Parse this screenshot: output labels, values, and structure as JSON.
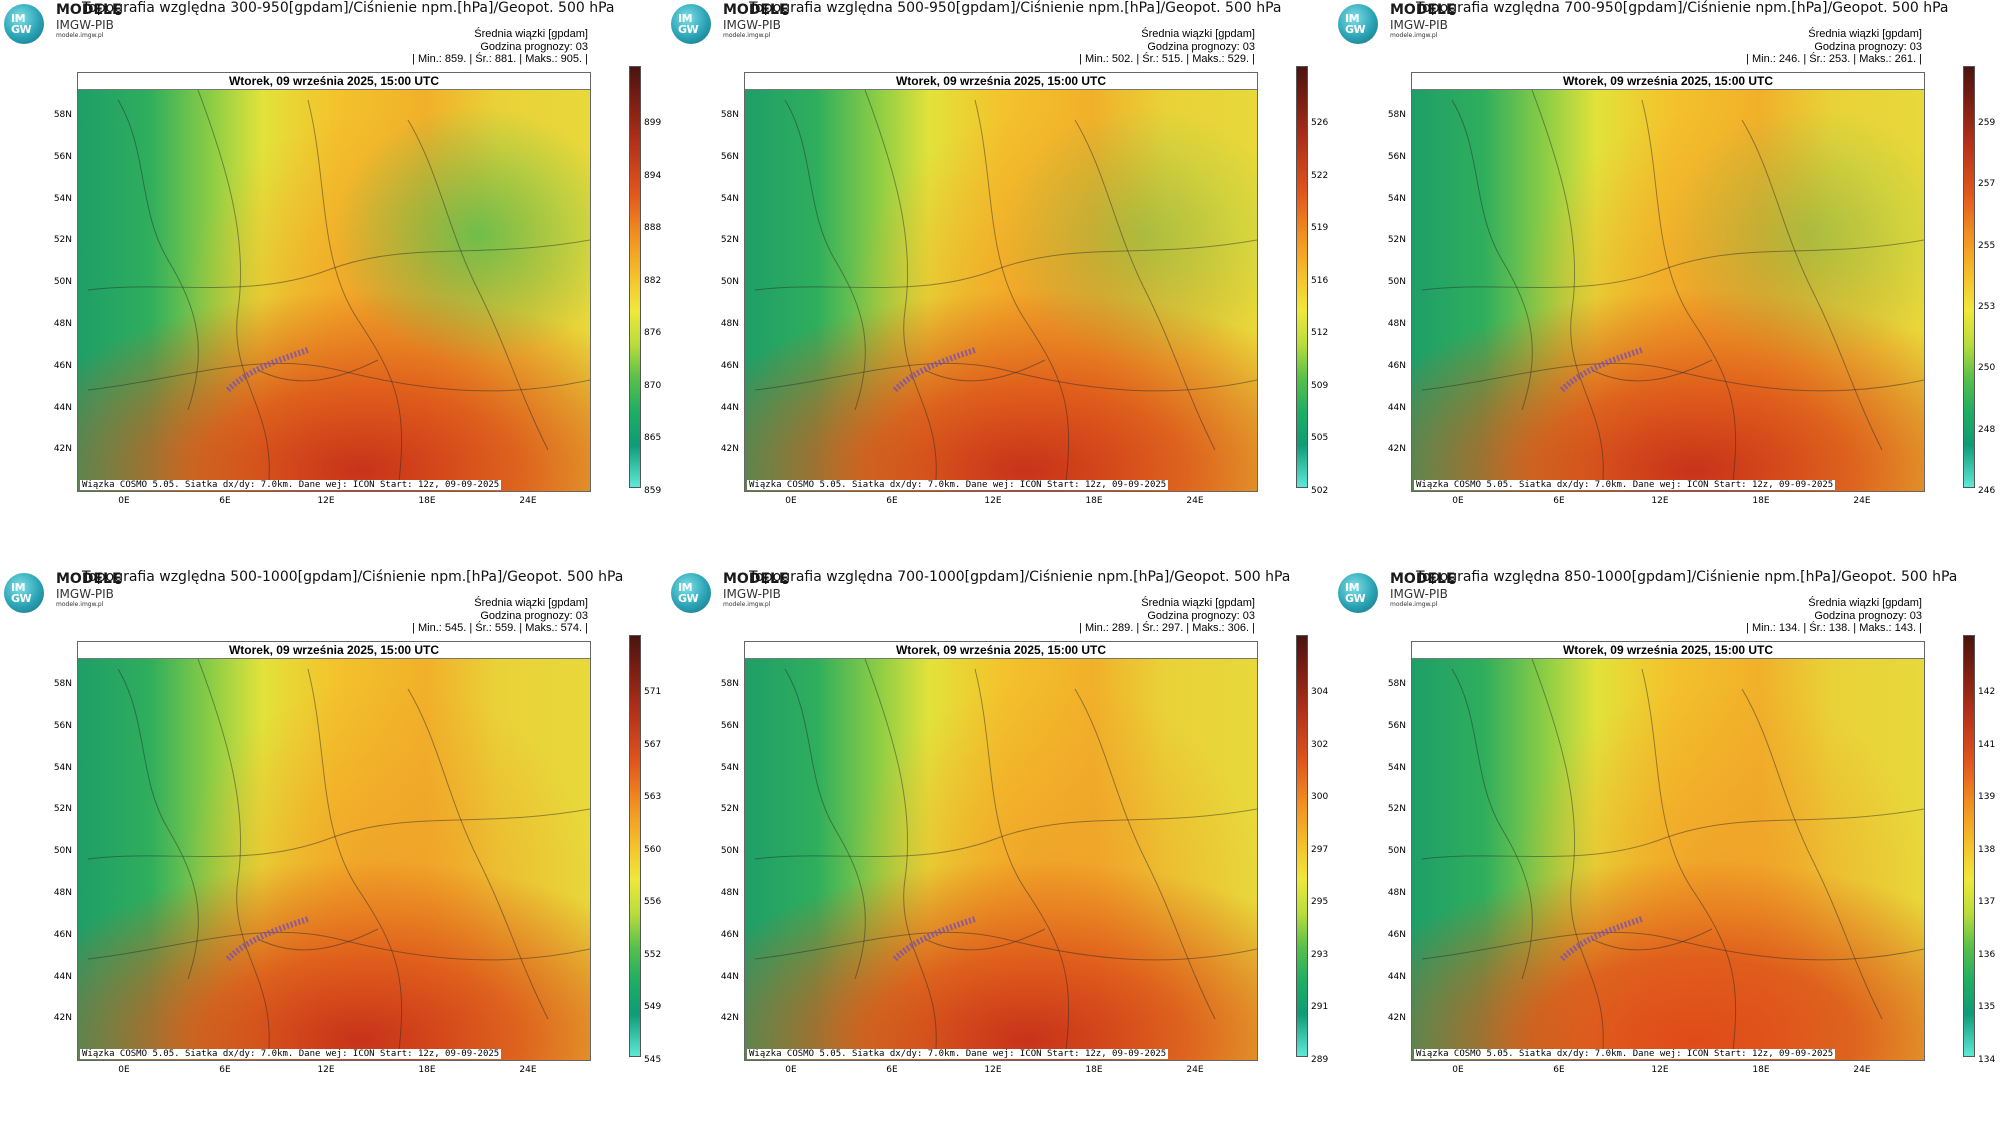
{
  "common": {
    "brand": "MODELE",
    "org": "IMGW-PIB",
    "site": "modele.imgw.pl",
    "logo_text": "IM GW",
    "stats_label": "Średnia wiązki [gpdam]",
    "forecast_hour": "Godzina prognozy: 03",
    "date": "Wtorek, 09 września 2025, 15:00 UTC",
    "footer": "Wiązka COSMO 5.05. Siatka dx/dy: 7.0km. Dane wej: ICON Start: 12z, 09-09-2025",
    "lat_labels": [
      "58N",
      "56N",
      "54N",
      "52N",
      "50N",
      "48N",
      "46N",
      "44N",
      "42N"
    ],
    "lon_labels": [
      "0E",
      "6E",
      "12E",
      "18E",
      "24E"
    ]
  },
  "panels": [
    {
      "title": "Topografia względna 300-950[gpdam]/Ciśnienie npm.[hPa]/Geopot. 500 hPa",
      "stats": "| Min.: 859. | Śr.: 881. | Maks.: 905. |",
      "scale": [
        "899",
        "894",
        "888",
        "882",
        "876",
        "870",
        "865",
        "859"
      ]
    },
    {
      "title": "Topografia względna 500-950[gpdam]/Ciśnienie npm.[hPa]/Geopot. 500 hPa",
      "stats": "| Min.: 502. | Śr.: 515. | Maks.: 529. |",
      "scale": [
        "526",
        "522",
        "519",
        "516",
        "512",
        "509",
        "505",
        "502"
      ]
    },
    {
      "title": "Topografia względna 700-950[gpdam]/Ciśnienie npm.[hPa]/Geopot. 500 hPa",
      "stats": "| Min.: 246. | Śr.: 253. | Maks.: 261. |",
      "scale": [
        "259",
        "257",
        "255",
        "253",
        "250",
        "248",
        "246"
      ]
    },
    {
      "title": "Topografia względna 500-1000[gpdam]/Ciśnienie npm.[hPa]/Geopot. 500 hPa",
      "stats": "| Min.: 545. | Śr.: 559. | Maks.: 574. |",
      "scale": [
        "571",
        "567",
        "563",
        "560",
        "556",
        "552",
        "549",
        "545"
      ]
    },
    {
      "title": "Topografia względna 700-1000[gpdam]/Ciśnienie npm.[hPa]/Geopot. 500 hPa",
      "stats": "| Min.: 289. | Śr.: 297. | Maks.: 306. |",
      "scale": [
        "304",
        "302",
        "300",
        "297",
        "295",
        "293",
        "291",
        "289"
      ]
    },
    {
      "title": "Topografia względna 850-1000[gpdam]/Ciśnienie npm.[hPa]/Geopot. 500 hPa",
      "stats": "| Min.: 134. | Śr.: 138. | Maks.: 143. |",
      "scale": [
        "142",
        "141",
        "139",
        "138",
        "137",
        "136",
        "135",
        "134"
      ]
    }
  ]
}
